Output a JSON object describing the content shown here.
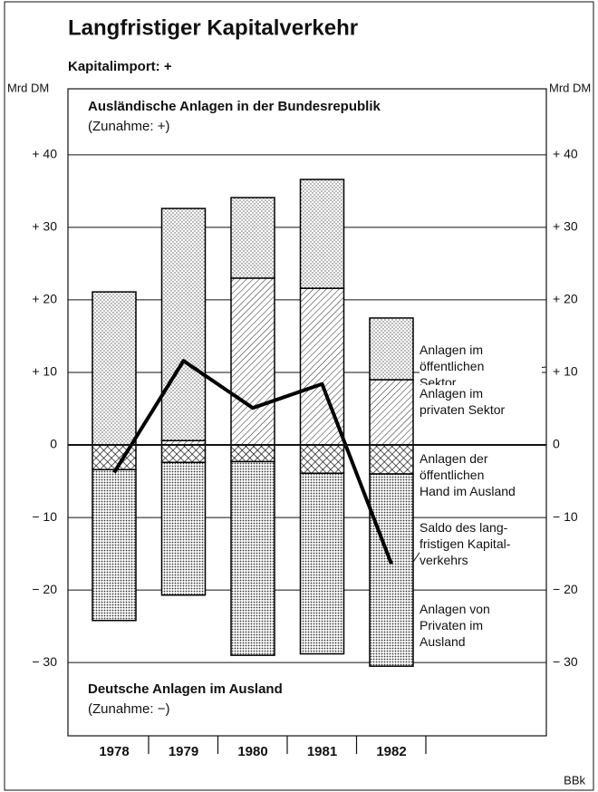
{
  "chart_data": {
    "type": "bar",
    "stacked": true,
    "title": "Langfristiger Kapitalverkehr",
    "subtitle": "Kapitalimport: +",
    "ylabel": "Mrd DM",
    "y2label": "Mrd DM",
    "annotations": [
      "Ausländische Anlagen in der Bundesrepublik",
      "(Zunahme: +)",
      "Deutsche Anlagen im Ausland",
      "(Zunahme: −)"
    ],
    "source": "BBk",
    "categories": [
      "1978",
      "1979",
      "1980",
      "1981",
      "1982"
    ],
    "series": [
      {
        "name": "Anlagen im\nöffentlichen\nSektor",
        "color": "#000000",
        "pattern": "hatch",
        "values": [
          0,
          0.6,
          23.0,
          21.6,
          9.0
        ]
      },
      {
        "name": "Anlagen im\nprivaten Sektor",
        "color": "#000000",
        "pattern": "dots",
        "values": [
          21.1,
          32.0,
          11.1,
          15.0,
          8.5
        ]
      },
      {
        "name": "Anlagen der\nöffentlichen\nHand im Ausland",
        "color": "#000000",
        "pattern": "cross",
        "values": [
          -3.4,
          -2.4,
          -2.3,
          -3.9,
          -4.0
        ]
      },
      {
        "name": "Anlagen von\nPrivaten im\nAusland",
        "color": "#000000",
        "pattern": "densedots",
        "values": [
          -20.8,
          -18.3,
          -26.7,
          -24.9,
          -26.5
        ]
      },
      {
        "name": "Saldo des lang-\nfristigen Kapital-\nverkehrs",
        "type": "line",
        "color": "#000000",
        "values": [
          -3.8,
          11.6,
          5.1,
          8.4,
          -16.4
        ]
      }
    ],
    "ylim": [
      -40.1,
      49.1
    ],
    "yticks": [
      {
        "value": 40,
        "label": "+ 40"
      },
      {
        "value": 30,
        "label": "+ 30"
      },
      {
        "value": 20,
        "label": "+ 20"
      },
      {
        "value": 10,
        "label": "+ 10"
      },
      0,
      {
        "value": -10,
        "label": "− 10"
      },
      {
        "value": -20,
        "label": "− 20"
      },
      {
        "value": -30,
        "label": "− 30"
      }
    ],
    "grid": true
  }
}
